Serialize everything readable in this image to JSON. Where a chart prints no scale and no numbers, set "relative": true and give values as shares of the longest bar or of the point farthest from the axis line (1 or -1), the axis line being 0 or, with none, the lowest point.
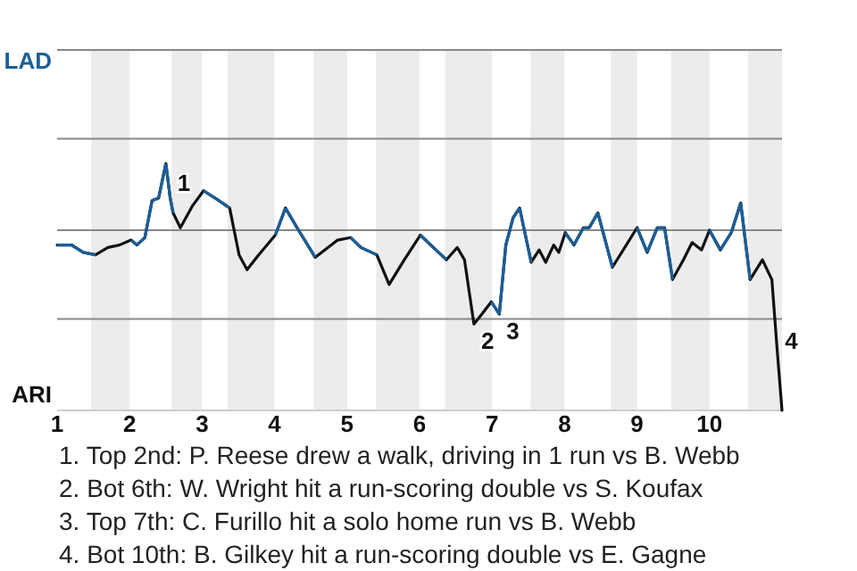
{
  "chart_data": {
    "type": "line",
    "relative": true,
    "x": [
      1.0,
      1.2,
      1.36,
      1.53,
      1.7,
      1.86,
      2.02,
      2.1,
      2.21,
      2.31,
      2.4,
      2.5,
      2.56,
      2.6,
      2.7,
      2.87,
      3.02,
      3.18,
      3.38,
      3.51,
      3.62,
      3.78,
      4.01,
      4.15,
      4.31,
      4.56,
      4.87,
      5.05,
      5.19,
      5.41,
      5.58,
      5.79,
      6.01,
      6.19,
      6.37,
      6.52,
      6.62,
      6.75,
      6.86,
      6.99,
      7.1,
      7.19,
      7.29,
      7.38,
      7.54,
      7.65,
      7.74,
      7.85,
      7.92,
      8.01,
      8.13,
      8.26,
      8.34,
      8.46,
      8.66,
      8.81,
      9.0,
      9.14,
      9.28,
      9.38,
      9.49,
      9.64,
      9.76,
      9.89,
      10.0,
      10.15,
      10.3,
      10.43,
      10.56,
      10.73,
      10.86,
      10.94,
      11.0
    ],
    "series": [
      {
        "color": "#111111",
        "colors": [
          "#1a5f99",
          "#1a5f99",
          "#1a5f99",
          "#111111",
          "#111111",
          "#111111",
          "#1a5f99",
          "#1a5f99",
          "#1a5f99",
          "#1a5f99",
          "#1a5f99",
          "#1a5f99",
          "#1a5f99",
          "#111111",
          "#111111",
          "#111111",
          "#1a5f99",
          "#1a5f99",
          "#111111",
          "#111111",
          "#111111",
          "#111111",
          "#1a5f99",
          "#1a5f99",
          "#1a5f99",
          "#111111",
          "#111111",
          "#1a5f99",
          "#1a5f99",
          "#111111",
          "#111111",
          "#111111",
          "#1a5f99",
          "#1a5f99",
          "#111111",
          "#111111",
          "#111111",
          "#111111",
          "#111111",
          "#1a5f99",
          "#1a5f99",
          "#1a5f99",
          "#1a5f99",
          "#1a5f99",
          "#111111",
          "#111111",
          "#111111",
          "#111111",
          "#111111",
          "#1a5f99",
          "#1a5f99",
          "#1a5f99",
          "#1a5f99",
          "#1a5f99",
          "#111111",
          "#111111",
          "#1a5f99",
          "#1a5f99",
          "#1a5f99",
          "#1a5f99",
          "#111111",
          "#111111",
          "#111111",
          "#111111",
          "#1a5f99",
          "#1a5f99",
          "#1a5f99",
          "#1a5f99",
          "#111111",
          "#111111",
          "#111111",
          "#111111",
          "#111111"
        ],
        "values": [
          0.67,
          0.67,
          0.64,
          0.63,
          0.66,
          0.67,
          0.69,
          0.67,
          0.7,
          0.85,
          0.86,
          1,
          0.86,
          0.8,
          0.74,
          0.83,
          0.89,
          0.86,
          0.82,
          0.63,
          0.57,
          0.63,
          0.71,
          0.82,
          0.74,
          0.62,
          0.69,
          0.7,
          0.66,
          0.63,
          0.51,
          0.61,
          0.71,
          0.66,
          0.61,
          0.66,
          0.61,
          0.35,
          0.39,
          0.44,
          0.39,
          0.67,
          0.78,
          0.82,
          0.6,
          0.65,
          0.6,
          0.67,
          0.64,
          0.72,
          0.67,
          0.74,
          0.74,
          0.8,
          0.58,
          0.65,
          0.74,
          0.64,
          0.74,
          0.74,
          0.53,
          0.61,
          0.68,
          0.65,
          0.73,
          0.65,
          0.72,
          0.84,
          0.53,
          0.61,
          0.53,
          0.22,
          0
        ]
      }
    ],
    "xlim": [
      1,
      11
    ],
    "xticks": [
      1,
      2,
      3,
      4,
      5,
      6,
      7,
      8,
      9,
      10
    ],
    "ref_lines": [
      {
        "axis": "y",
        "value": 0.37,
        "color": "#888888"
      },
      {
        "axis": "y",
        "value": 0.73,
        "color": "#888888"
      },
      {
        "axis": "y",
        "value": 1.1,
        "color": "#888888"
      },
      {
        "axis": "y",
        "value": 1.46,
        "color": "#888888"
      }
    ],
    "marker": "none",
    "line_style": "solid",
    "bands": [
      {
        "axis": "x",
        "from": 1.47,
        "to": 2,
        "color": "#ececec"
      },
      {
        "axis": "x",
        "from": 2.58,
        "to": 3,
        "color": "#ececec"
      },
      {
        "axis": "x",
        "from": 3.35,
        "to": 4,
        "color": "#ececec"
      },
      {
        "axis": "x",
        "from": 4.54,
        "to": 5,
        "color": "#ececec"
      },
      {
        "axis": "x",
        "from": 5.4,
        "to": 6,
        "color": "#ececec"
      },
      {
        "axis": "x",
        "from": 6.35,
        "to": 7,
        "color": "#ececec"
      },
      {
        "axis": "x",
        "from": 7.53,
        "to": 8,
        "color": "#ececec"
      },
      {
        "axis": "x",
        "from": 8.64,
        "to": 9,
        "color": "#ececec"
      },
      {
        "axis": "x",
        "from": 9.47,
        "to": 10,
        "color": "#ececec"
      },
      {
        "axis": "x",
        "from": 10.53,
        "to": 11,
        "color": "#ececec"
      }
    ],
    "annotations": [
      "LAD",
      "ARI",
      {
        "text": "1",
        "x": 2.56,
        "y": 0.86
      },
      {
        "text": "2",
        "x": 6.75,
        "y": 0.35
      },
      {
        "text": "3",
        "x": 7.1,
        "y": 0.39
      },
      {
        "text": "4",
        "x": 10.94,
        "y": 0.22
      },
      "1. Top 2nd: P. Reese drew a walk, driving in 1 run vs B. Webb",
      "2. Bot 6th: W. Wright hit a run-scoring double vs S. Koufax",
      "3. Top 7th: C. Furillo hit a solo home run vs B. Webb",
      "4. Bot 10th: B. Gilkey hit a run-scoring double vs E. Gagne"
    ]
  }
}
